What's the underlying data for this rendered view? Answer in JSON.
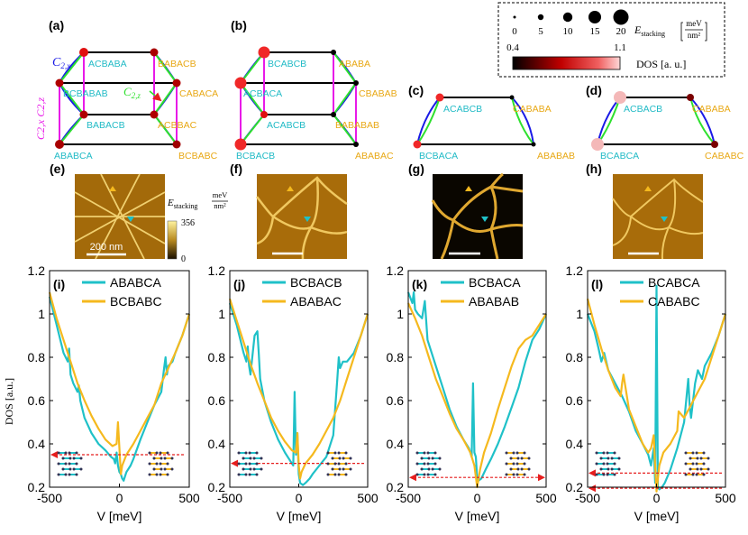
{
  "colors": {
    "cyan": "#1FC1C8",
    "yellow": "#F5B91E",
    "blue": "#1A1AE6",
    "green": "#2EE02E",
    "magenta": "#E81AE8",
    "red_arrow": "#E61E1E"
  },
  "panels": {
    "a": "(a)",
    "b": "(b)",
    "c": "(c)",
    "d": "(d)",
    "e": "(e)",
    "f": "(f)",
    "g": "(g)",
    "h": "(h)",
    "i": "(i)",
    "j": "(j)",
    "k": "(k)",
    "l": "(l)"
  },
  "panel_a": {
    "top_left": "ACBABA",
    "top_right": "BABACB",
    "mid_left": "BCBABAB",
    "mid_right": "CABACA",
    "low_left": "BABACB",
    "low_right": "ACBBAC",
    "bot_left": "ABABCA",
    "bot_right": "BCBABC",
    "c2x": "C",
    "c2x_sub": "2,x",
    "c2z": "C",
    "c2z_sub": "2,z",
    "c2xc2z": "C2,x C2,z"
  },
  "panel_b": {
    "top_left": "BCABCB",
    "top_right": "ABABA",
    "mid_left": "ACBACA",
    "mid_right": "CBABAB",
    "low_left": "ACABCB",
    "low_right": "BABABAB",
    "bot_left": "BCBACB",
    "bot_right": "ABABAC"
  },
  "panel_c": {
    "top_left": "ACABCB",
    "top_right": "CABABA",
    "bot_left": "BCBACA",
    "bot_right": "ABABAB"
  },
  "panel_d": {
    "top_left": "ACBACB",
    "top_right": "CABABA",
    "bot_left": "BCABCA",
    "bot_right": "CABABC"
  },
  "size_legend": {
    "values": [
      "0",
      "5",
      "10",
      "15",
      "20"
    ],
    "label": "E",
    "label_sub": "stacking",
    "unit_top": "meV",
    "unit_bottom": "nm²"
  },
  "dos_colorbar": {
    "min": "0.4",
    "max": "1.1",
    "label": "DOS [a. u.]"
  },
  "estack_colorbar": {
    "label": "E",
    "label_sub": "stacking",
    "unit_top": "meV",
    "unit_bottom": "nm²",
    "max": "356",
    "min": "0"
  },
  "scalebar": "200 nm",
  "chart_data": [
    {
      "type": "line",
      "title": "",
      "xlabel": "V [meV]",
      "ylabel": "DOS [a.u.]",
      "xlim": [
        -500,
        500
      ],
      "ylim": [
        0.2,
        1.2
      ],
      "xticks": [
        "-500",
        "0",
        "500"
      ],
      "yticks": [
        "0.2",
        "0.4",
        "0.6",
        "0.8",
        "1",
        "1.2"
      ],
      "series": [
        {
          "name": "ABABCA",
          "x": [
            -500,
            -450,
            -400,
            -370,
            -360,
            -350,
            -330,
            -300,
            -290,
            -280,
            -250,
            -200,
            -150,
            -100,
            -60,
            -40,
            -30,
            -20,
            -10,
            0,
            10,
            20,
            30,
            40,
            50,
            80,
            100,
            150,
            200,
            250,
            300,
            320,
            330,
            340,
            350,
            380,
            400,
            450,
            500
          ],
          "y": [
            1.08,
            0.95,
            0.82,
            0.78,
            0.84,
            0.72,
            0.68,
            0.64,
            0.67,
            0.6,
            0.52,
            0.45,
            0.4,
            0.37,
            0.34,
            0.33,
            0.31,
            0.36,
            0.3,
            0.27,
            0.26,
            0.24,
            0.23,
            0.25,
            0.27,
            0.3,
            0.33,
            0.42,
            0.5,
            0.58,
            0.64,
            0.75,
            0.8,
            0.72,
            0.76,
            0.78,
            0.82,
            0.9,
            1.0
          ]
        },
        {
          "name": "BCBABC",
          "x": [
            -500,
            -450,
            -400,
            -350,
            -300,
            -250,
            -200,
            -150,
            -100,
            -50,
            -20,
            -10,
            0,
            10,
            20,
            50,
            100,
            150,
            200,
            250,
            300,
            350,
            400,
            450,
            500
          ],
          "y": [
            1.1,
            0.98,
            0.88,
            0.78,
            0.68,
            0.6,
            0.53,
            0.47,
            0.42,
            0.39,
            0.4,
            0.5,
            0.38,
            0.26,
            0.3,
            0.35,
            0.4,
            0.46,
            0.52,
            0.58,
            0.68,
            0.75,
            0.82,
            0.9,
            1.0
          ]
        }
      ]
    },
    {
      "type": "line",
      "xlabel": "V [meV]",
      "ylabel": "",
      "xlim": [
        -500,
        500
      ],
      "ylim": [
        0.2,
        1.2
      ],
      "xticks": [
        "-500",
        "0",
        "500"
      ],
      "yticks": [
        "0.2",
        "0.4",
        "0.6",
        "0.8",
        "1",
        "1.2"
      ],
      "series": [
        {
          "name": "BCBACB",
          "x": [
            -500,
            -450,
            -400,
            -380,
            -370,
            -360,
            -350,
            -320,
            -300,
            -290,
            -280,
            -250,
            -200,
            -150,
            -100,
            -60,
            -40,
            -30,
            -20,
            -10,
            0,
            10,
            30,
            50,
            80,
            100,
            150,
            200,
            250,
            280,
            290,
            300,
            320,
            350,
            400,
            450,
            500
          ],
          "y": [
            1.05,
            0.95,
            0.82,
            0.78,
            0.85,
            0.76,
            0.72,
            0.9,
            0.92,
            0.82,
            0.7,
            0.6,
            0.5,
            0.42,
            0.36,
            0.32,
            0.3,
            0.64,
            0.35,
            0.45,
            0.26,
            0.22,
            0.21,
            0.22,
            0.24,
            0.26,
            0.3,
            0.34,
            0.44,
            0.7,
            0.8,
            0.75,
            0.78,
            0.78,
            0.82,
            0.9,
            1.0
          ]
        },
        {
          "name": "ABABAC",
          "x": [
            -500,
            -450,
            -400,
            -350,
            -300,
            -250,
            -200,
            -150,
            -100,
            -50,
            -20,
            -10,
            0,
            10,
            20,
            50,
            100,
            150,
            200,
            250,
            300,
            350,
            400,
            450,
            500
          ],
          "y": [
            1.07,
            0.97,
            0.87,
            0.77,
            0.68,
            0.6,
            0.52,
            0.46,
            0.41,
            0.37,
            0.36,
            0.45,
            0.3,
            0.24,
            0.27,
            0.31,
            0.35,
            0.4,
            0.46,
            0.52,
            0.6,
            0.7,
            0.8,
            0.9,
            1.0
          ]
        }
      ]
    },
    {
      "type": "line",
      "xlabel": "V [meV]",
      "ylabel": "",
      "xlim": [
        -500,
        500
      ],
      "ylim": [
        0.2,
        1.2
      ],
      "xticks": [
        "-500",
        "0",
        "500"
      ],
      "yticks": [
        "0.2",
        "0.4",
        "0.6",
        "0.8",
        "1",
        "1.2"
      ],
      "series": [
        {
          "name": "BCBACA",
          "x": [
            -500,
            -470,
            -460,
            -450,
            -430,
            -400,
            -380,
            -360,
            -330,
            -300,
            -250,
            -200,
            -150,
            -100,
            -60,
            -40,
            -30,
            -20,
            -10,
            0,
            10,
            30,
            60,
            100,
            150,
            200,
            250,
            300,
            350,
            400,
            450,
            500
          ],
          "y": [
            1.1,
            1.05,
            1.1,
            1.02,
            1.0,
            0.98,
            1.06,
            0.88,
            0.82,
            0.76,
            0.66,
            0.56,
            0.48,
            0.42,
            0.38,
            0.34,
            0.68,
            0.36,
            0.34,
            0.24,
            0.23,
            0.24,
            0.28,
            0.33,
            0.4,
            0.48,
            0.57,
            0.66,
            0.78,
            0.88,
            0.93,
            1.0
          ]
        },
        {
          "name": "ABABAB",
          "x": [
            -500,
            -450,
            -400,
            -350,
            -300,
            -250,
            -200,
            -150,
            -100,
            -50,
            -20,
            0,
            20,
            50,
            100,
            150,
            200,
            250,
            300,
            350,
            400,
            450,
            500
          ],
          "y": [
            1.05,
            0.98,
            0.9,
            0.8,
            0.7,
            0.62,
            0.54,
            0.47,
            0.42,
            0.36,
            0.3,
            0.2,
            0.28,
            0.36,
            0.45,
            0.56,
            0.66,
            0.76,
            0.84,
            0.88,
            0.9,
            0.95,
            1.0
          ]
        }
      ]
    },
    {
      "type": "line",
      "xlabel": "V [meV]",
      "ylabel": "",
      "xlim": [
        -500,
        500
      ],
      "ylim": [
        0.2,
        1.2
      ],
      "xticks": [
        "-500",
        "0",
        "500"
      ],
      "yticks": [
        "0.2",
        "0.4",
        "0.6",
        "0.8",
        "1",
        "1.2"
      ],
      "series": [
        {
          "name": "BCABCA",
          "x": [
            -500,
            -450,
            -420,
            -400,
            -380,
            -350,
            -300,
            -250,
            -200,
            -150,
            -100,
            -60,
            -40,
            -20,
            -10,
            0,
            10,
            20,
            40,
            60,
            100,
            150,
            200,
            230,
            240,
            250,
            280,
            300,
            330,
            350,
            400,
            450,
            500
          ],
          "y": [
            1.0,
            0.92,
            0.84,
            0.78,
            0.82,
            0.74,
            0.68,
            0.62,
            0.55,
            0.46,
            0.4,
            0.35,
            0.3,
            0.38,
            0.22,
            1.13,
            0.2,
            0.19,
            0.2,
            0.22,
            0.28,
            0.38,
            0.5,
            0.7,
            0.58,
            0.52,
            0.68,
            0.74,
            0.7,
            0.76,
            0.82,
            0.9,
            1.0
          ]
        },
        {
          "name": "CABABC",
          "x": [
            -500,
            -450,
            -400,
            -350,
            -300,
            -260,
            -250,
            -240,
            -200,
            -150,
            -100,
            -60,
            -40,
            -20,
            -10,
            0,
            10,
            20,
            50,
            100,
            150,
            160,
            200,
            250,
            300,
            350,
            400,
            450,
            500
          ],
          "y": [
            1.07,
            0.95,
            0.84,
            0.74,
            0.66,
            0.62,
            0.68,
            0.72,
            0.56,
            0.48,
            0.4,
            0.36,
            0.38,
            0.44,
            0.3,
            0.18,
            0.24,
            0.3,
            0.36,
            0.4,
            0.46,
            0.55,
            0.52,
            0.58,
            0.64,
            0.7,
            0.8,
            0.9,
            1.0
          ]
        }
      ]
    }
  ]
}
